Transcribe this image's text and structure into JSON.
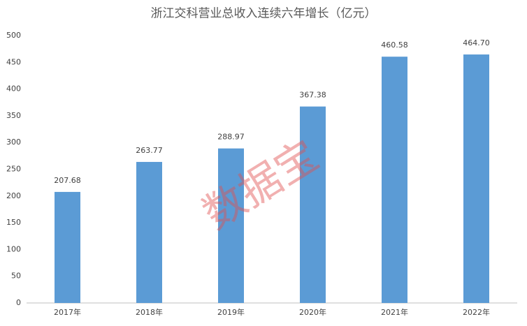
{
  "chart_data": {
    "type": "bar",
    "title": "浙江交科营业总收入连续六年增长（亿元）",
    "categories": [
      "2017年",
      "2018年",
      "2019年",
      "2020年",
      "2021年",
      "2022年"
    ],
    "values": [
      207.68,
      263.77,
      288.97,
      367.38,
      460.58,
      464.7
    ],
    "value_labels": [
      "207.68",
      "263.77",
      "288.97",
      "367.38",
      "460.58",
      "464.70"
    ],
    "color": "#5b9bd5",
    "ylim": [
      0,
      500
    ],
    "yticks": [
      0,
      50,
      100,
      150,
      200,
      250,
      300,
      350,
      400,
      450,
      500
    ],
    "grid": false,
    "watermark": "数据宝"
  }
}
